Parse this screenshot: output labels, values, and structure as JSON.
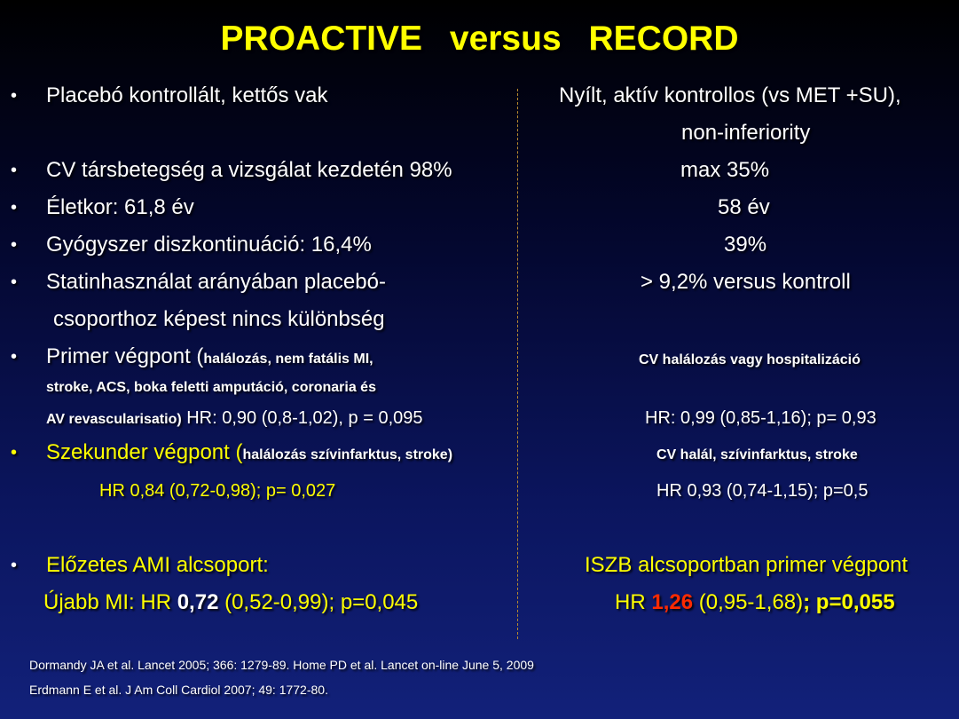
{
  "title": "PROACTIVE versus RECORD",
  "bullet_char": "•",
  "rows": {
    "r1_left": "Placebó kontrollált, kettős vak",
    "r1_right": "Nyílt, aktív kontrollos (vs MET +SU),",
    "r1_right2": "non-inferiority",
    "r2_left": "CV társbetegség a vizsgálat kezdetén 98%",
    "r2_right": "max 35%",
    "r3_left": "Életkor: 61,8 év",
    "r3_right": "58 év",
    "r4_left": "Gyógyszer diszkontinuáció: 16,4%",
    "r4_right": "39%",
    "r5_left": "Statinhasználat arányában placebó-",
    "r5_left2": "csoporthoz képest nincs különbség",
    "r5_right": "> 9,2% versus kontroll",
    "r6_left_lead": "Primer végpont (",
    "r6_left_small": "halálozás, nem fatális MI,",
    "r6_left2": "stroke, ACS, boka feletti amputáció, coronaria és",
    "r6_left3_small": "AV revascularisatio)",
    "r6_left3_hr": " HR: 0,90 (0,8-1,02), p = 0,095",
    "r6_right": "CV halálozás vagy hospitalizáció",
    "r6_right_hr": "HR: 0,99 (0,85-1,16); p= 0,93",
    "r7_left_lead": "Szekunder végpont (",
    "r7_left_small": "halálozás szívinfarktus, stroke)",
    "r7_left_hr": "HR 0,84 (0,72-0,98);  p= 0,027",
    "r7_right": "CV halál, szívinfarktus, stroke",
    "r7_right_hr": "HR 0,93 (0,74-1,15);  p=0,5",
    "r8_left": "Előzetes AMI alcsoport:",
    "r8_left_hr_a": "Újabb MI: HR ",
    "r8_left_hr_b": "0,72",
    "r8_left_hr_c": " (0,52-0,99); p=0,045",
    "r8_right": "ISZB alcsoportban primer végpont",
    "r8_right_hr_a": "HR ",
    "r8_right_hr_b": "1,26",
    "r8_right_hr_c": " (0,95-1,68)",
    "r8_right_hr_d": "; p=0,055"
  },
  "references": [
    "Dormandy JA  et al. Lancet 2005; 366: 1279-89. Home  PD et al. Lancet  on-line  June 5, 2009",
    "Erdmann E et al. J Am Coll Cardiol 2007; 49: 1772-80."
  ],
  "colors": {
    "title": "#ffff00",
    "highlight_yellow": "#ffff00",
    "highlight_red": "#ff2a00",
    "divider": "#b5892e"
  }
}
